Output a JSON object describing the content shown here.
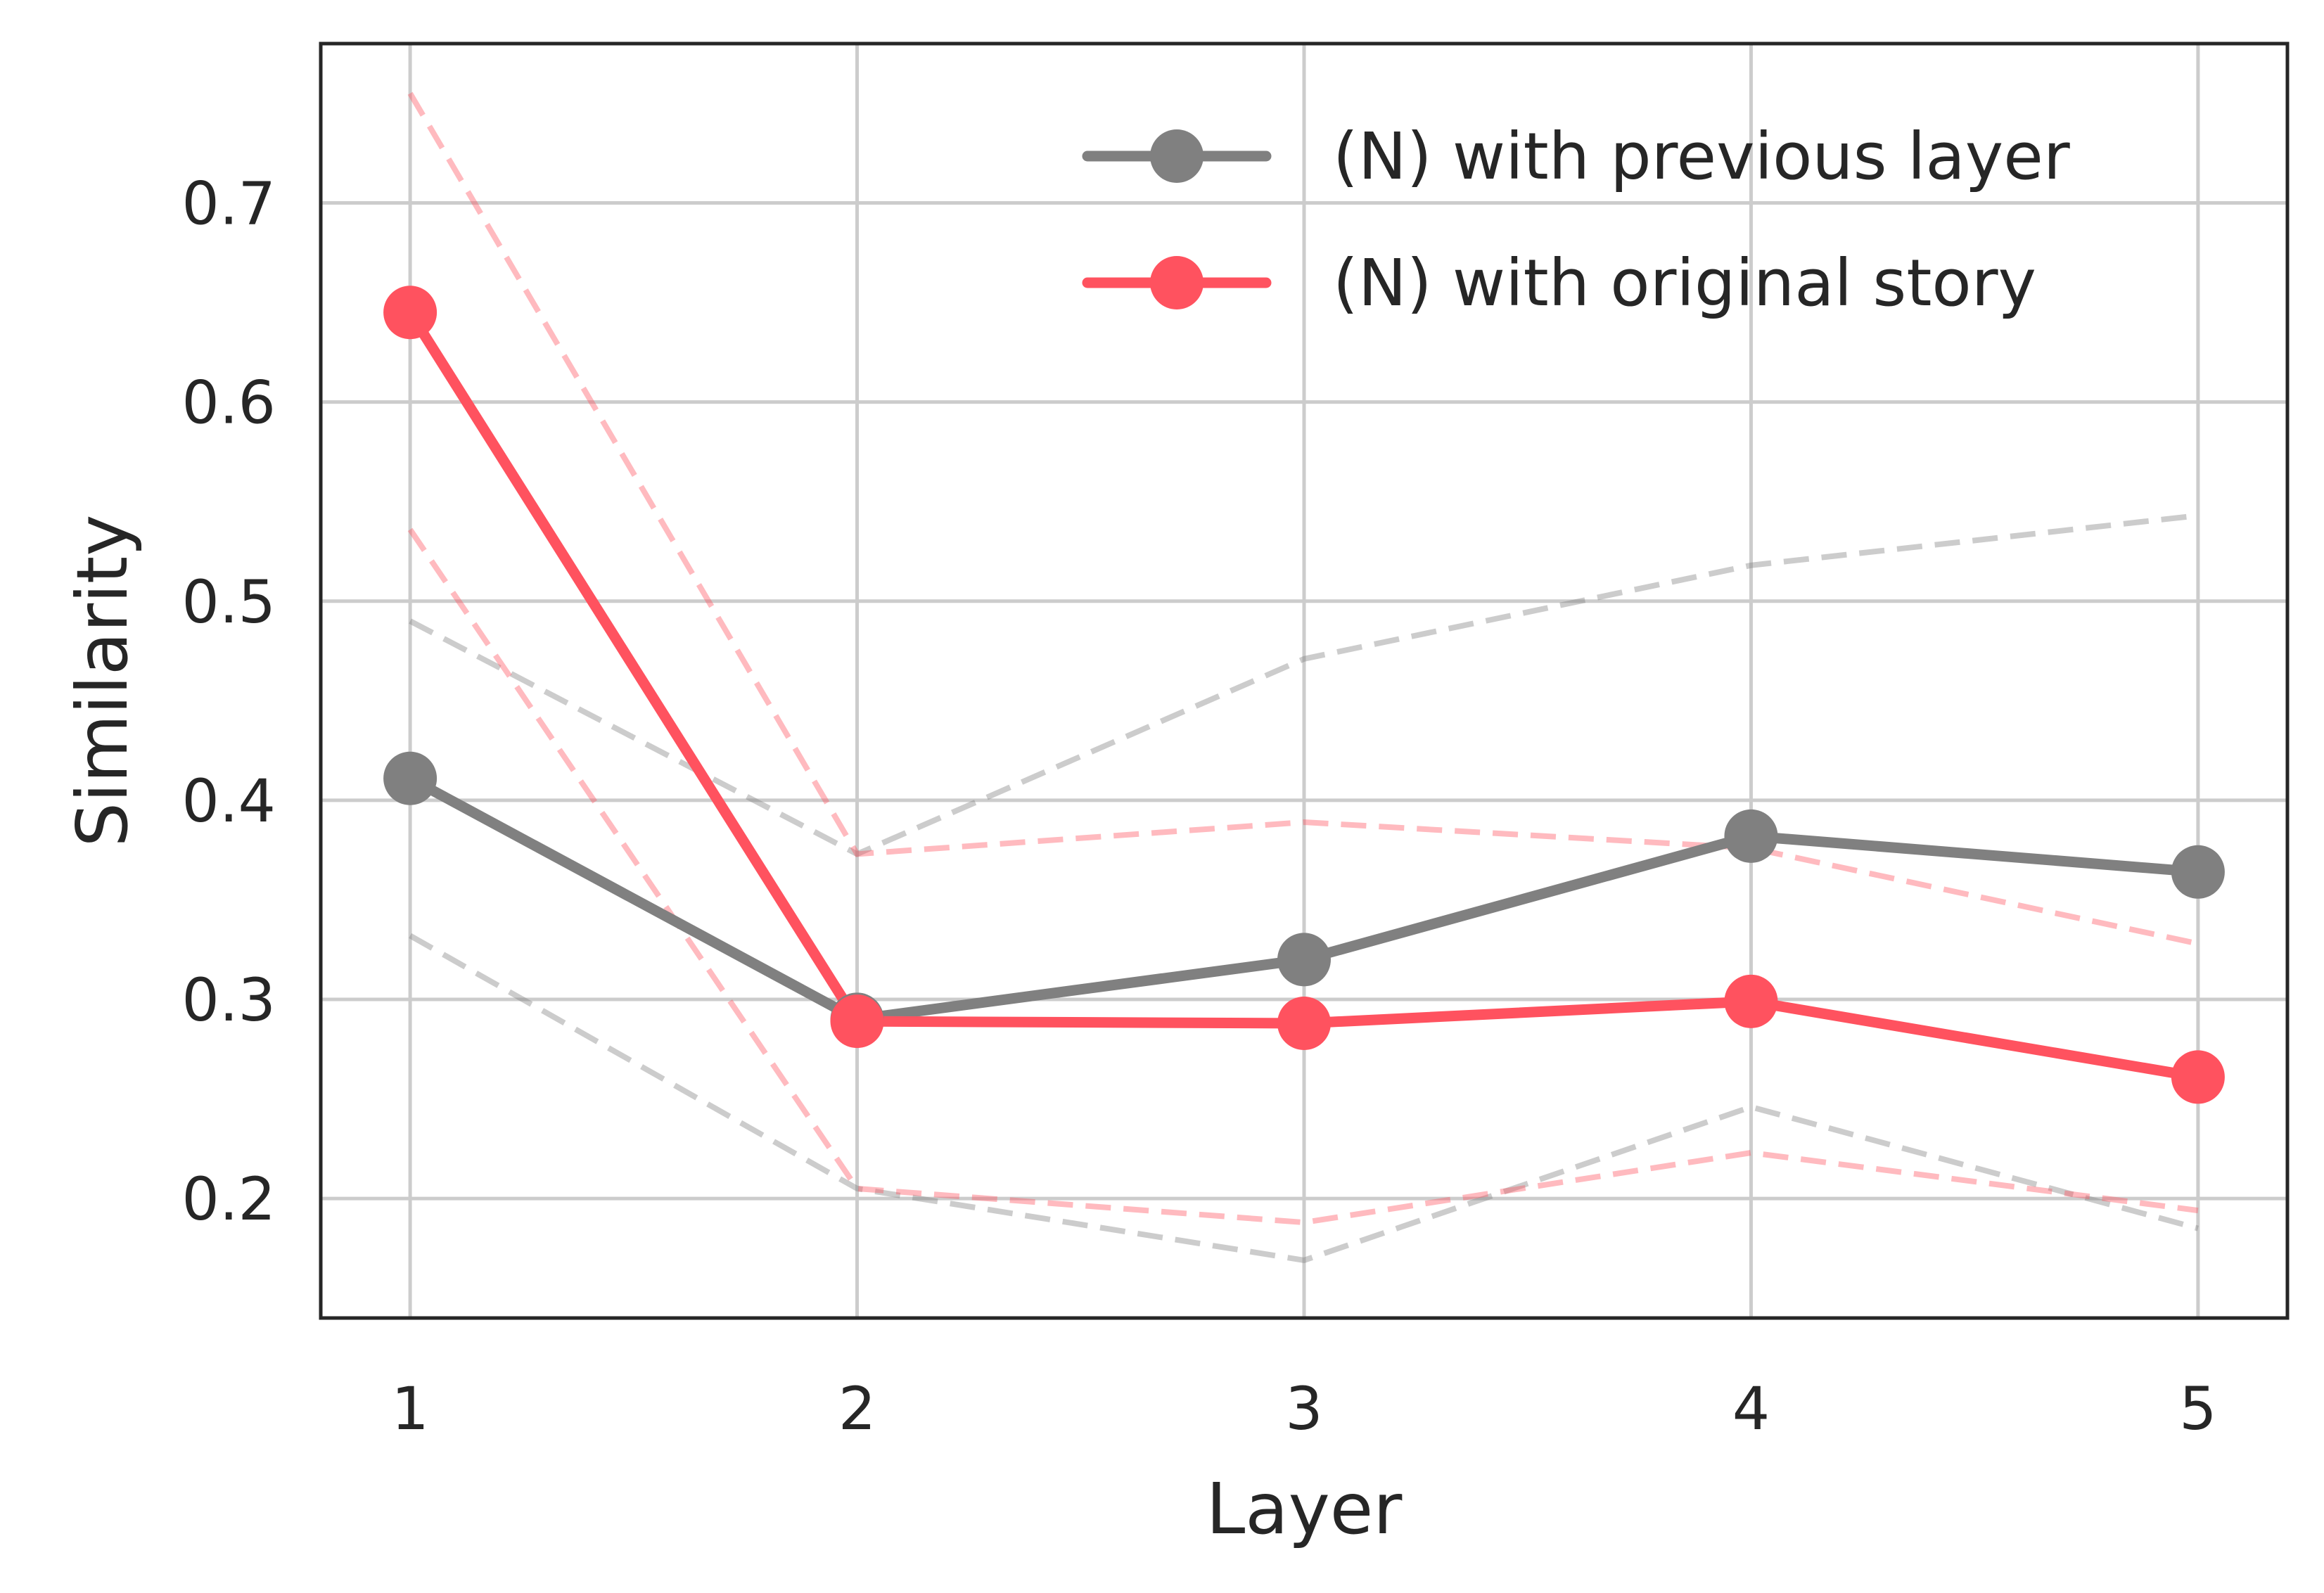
{
  "chart_data": {
    "type": "line",
    "title": "",
    "xlabel": "Layer",
    "ylabel": "Similarity",
    "x": [
      1,
      2,
      3,
      4,
      5
    ],
    "x_ticks": [
      "1",
      "2",
      "3",
      "4",
      "5"
    ],
    "xlim": [
      0.8,
      5.2
    ],
    "y_ticks": [
      "0.2",
      "0.3",
      "0.4",
      "0.5",
      "0.6",
      "0.7"
    ],
    "ylim": [
      0.14,
      0.78
    ],
    "grid": true,
    "legend_position": "top-right",
    "series": [
      {
        "name": "(N) with previous layer",
        "color": "#808080",
        "values": [
          0.411,
          0.29,
          0.32,
          0.382,
          0.364
        ],
        "band_upper": [
          0.49,
          0.373,
          0.471,
          0.518,
          0.543
        ],
        "band_lower": [
          0.332,
          0.205,
          0.169,
          0.246,
          0.185
        ]
      },
      {
        "name": "(N) with original story",
        "color": "#ff525f",
        "values": [
          0.645,
          0.289,
          0.288,
          0.299,
          0.261
        ],
        "band_upper": [
          0.755,
          0.373,
          0.389,
          0.376,
          0.328
        ],
        "band_lower": [
          0.536,
          0.205,
          0.188,
          0.223,
          0.194
        ]
      }
    ]
  }
}
